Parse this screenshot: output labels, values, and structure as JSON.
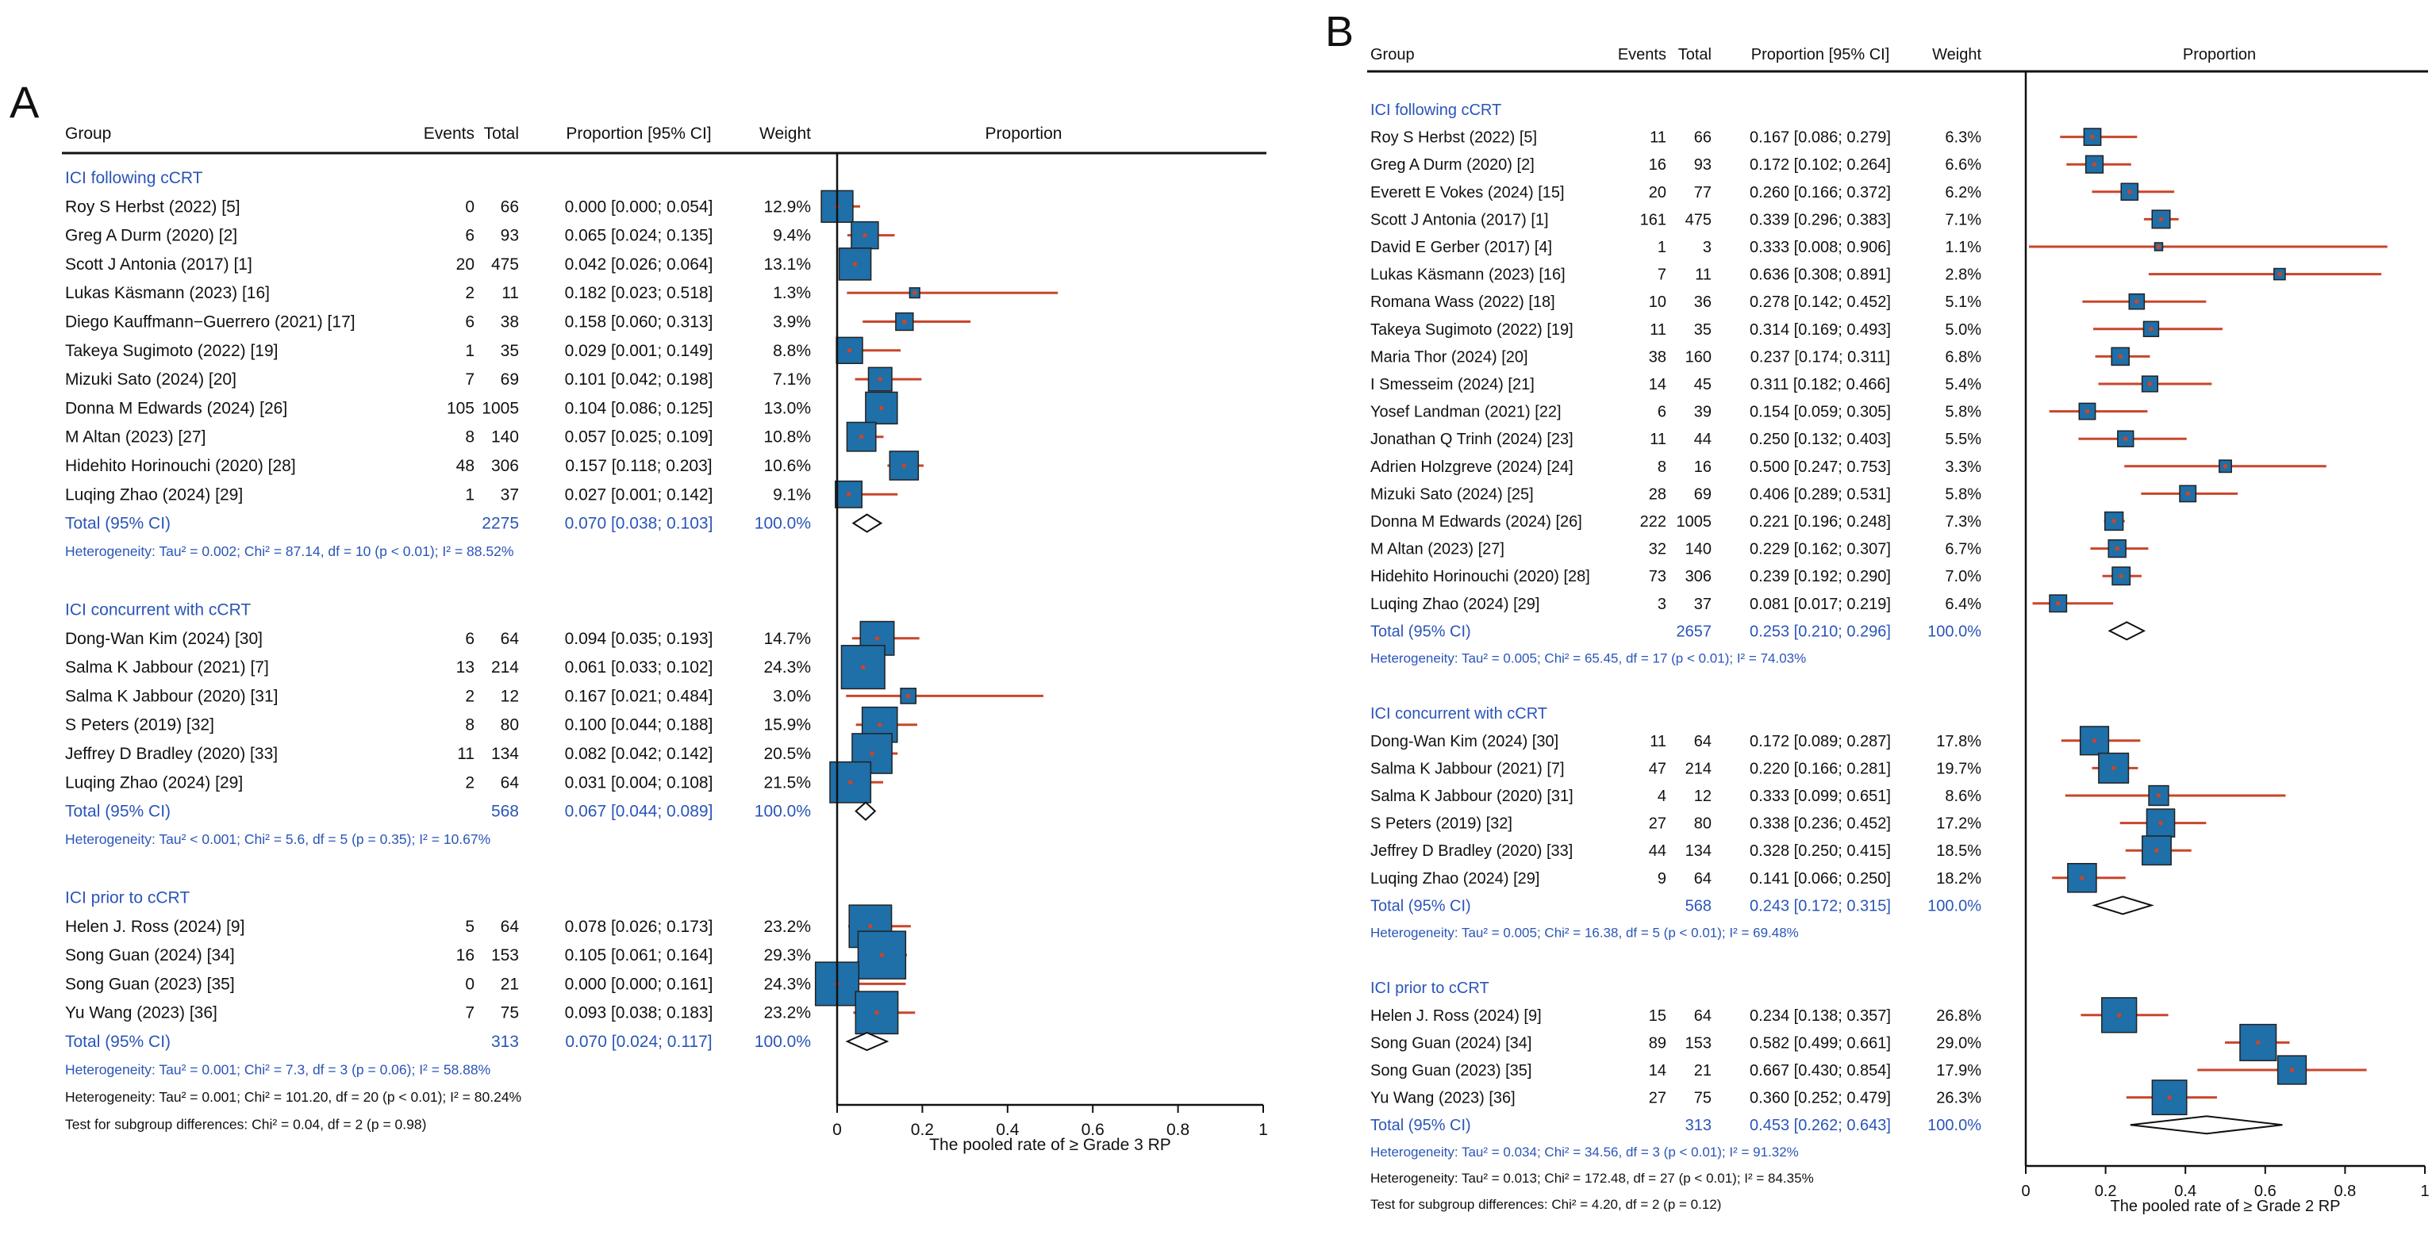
{
  "chart_data": [
    {
      "type": "forest",
      "panel_label": "A",
      "columns": {
        "group": "Group",
        "events": "Events",
        "total": "Total",
        "proportion": "Proportion [95% CI]",
        "weight": "Weight",
        "plot": "Proportion"
      },
      "xlim": [
        0,
        1
      ],
      "ticks": [
        "0",
        "0.2",
        "0.4",
        "0.6",
        "0.8",
        "1"
      ],
      "xlabel": "The pooled rate of ≥ Grade 3 RP",
      "subgroups": [
        {
          "name": "ICI following cCRT",
          "studies": [
            {
              "study": "Roy S Herbst (2022) [5]",
              "events": "0",
              "total": "66",
              "ci_text": "0.000 [0.000; 0.054]",
              "weight": "12.9%",
              "est": 0.0,
              "lo": 0.0,
              "hi": 0.054
            },
            {
              "study": "Greg A Durm (2020) [2]",
              "events": "6",
              "total": "93",
              "ci_text": "0.065 [0.024; 0.135]",
              "weight": "9.4%",
              "est": 0.065,
              "lo": 0.024,
              "hi": 0.135
            },
            {
              "study": "Scott J Antonia (2017) [1]",
              "events": "20",
              "total": "475",
              "ci_text": "0.042 [0.026; 0.064]",
              "weight": "13.1%",
              "est": 0.042,
              "lo": 0.026,
              "hi": 0.064
            },
            {
              "study": "Lukas Käsmann (2023) [16]",
              "events": "2",
              "total": "11",
              "ci_text": "0.182 [0.023; 0.518]",
              "weight": "1.3%",
              "est": 0.182,
              "lo": 0.023,
              "hi": 0.518
            },
            {
              "study": "Diego Kauffmann−Guerrero (2021) [17]",
              "events": "6",
              "total": "38",
              "ci_text": "0.158 [0.060; 0.313]",
              "weight": "3.9%",
              "est": 0.158,
              "lo": 0.06,
              "hi": 0.313
            },
            {
              "study": "Takeya Sugimoto (2022) [19]",
              "events": "1",
              "total": "35",
              "ci_text": "0.029 [0.001; 0.149]",
              "weight": "8.8%",
              "est": 0.029,
              "lo": 0.001,
              "hi": 0.149
            },
            {
              "study": "Mizuki Sato (2024) [20]",
              "events": "7",
              "total": "69",
              "ci_text": "0.101 [0.042; 0.198]",
              "weight": "7.1%",
              "est": 0.101,
              "lo": 0.042,
              "hi": 0.198
            },
            {
              "study": "Donna M Edwards (2024) [26]",
              "events": "105",
              "total": "1005",
              "ci_text": "0.104 [0.086; 0.125]",
              "weight": "13.0%",
              "est": 0.104,
              "lo": 0.086,
              "hi": 0.125
            },
            {
              "study": "M Altan (2023) [27]",
              "events": "8",
              "total": "140",
              "ci_text": "0.057 [0.025; 0.109]",
              "weight": "10.8%",
              "est": 0.057,
              "lo": 0.025,
              "hi": 0.109
            },
            {
              "study": "Hidehito Horinouchi (2020) [28]",
              "events": "48",
              "total": "306",
              "ci_text": "0.157 [0.118; 0.203]",
              "weight": "10.6%",
              "est": 0.157,
              "lo": 0.118,
              "hi": 0.203
            },
            {
              "study": "Luqing Zhao (2024) [29]",
              "events": "1",
              "total": "37",
              "ci_text": "0.027 [0.001; 0.142]",
              "weight": "9.1%",
              "est": 0.027,
              "lo": 0.001,
              "hi": 0.142
            }
          ],
          "pooled": {
            "label": "Total (95% CI)",
            "total": "2275",
            "ci_text": "0.070 [0.038; 0.103]",
            "weight": "100.0%",
            "est": 0.07,
            "lo": 0.038,
            "hi": 0.103
          },
          "heterogeneity": "Heterogeneity: Tau² = 0.002; Chi² = 87.14, df = 10 (p < 0.01); I² = 88.52%"
        },
        {
          "name": "ICI concurrent with cCRT",
          "studies": [
            {
              "study": "Dong-Wan Kim (2024) [30]",
              "events": "6",
              "total": "64",
              "ci_text": "0.094 [0.035; 0.193]",
              "weight": "14.7%",
              "est": 0.094,
              "lo": 0.035,
              "hi": 0.193
            },
            {
              "study": "Salma K Jabbour (2021) [7]",
              "events": "13",
              "total": "214",
              "ci_text": "0.061 [0.033; 0.102]",
              "weight": "24.3%",
              "est": 0.061,
              "lo": 0.033,
              "hi": 0.102
            },
            {
              "study": "Salma K Jabbour (2020) [31]",
              "events": "2",
              "total": "12",
              "ci_text": "0.167 [0.021; 0.484]",
              "weight": "3.0%",
              "est": 0.167,
              "lo": 0.021,
              "hi": 0.484
            },
            {
              "study": "S Peters (2019) [32]",
              "events": "8",
              "total": "80",
              "ci_text": "0.100 [0.044; 0.188]",
              "weight": "15.9%",
              "est": 0.1,
              "lo": 0.044,
              "hi": 0.188
            },
            {
              "study": "Jeffrey D Bradley (2020) [33]",
              "events": "11",
              "total": "134",
              "ci_text": "0.082 [0.042; 0.142]",
              "weight": "20.5%",
              "est": 0.082,
              "lo": 0.042,
              "hi": 0.142
            },
            {
              "study": "Luqing Zhao (2024) [29]",
              "events": "2",
              "total": "64",
              "ci_text": "0.031 [0.004; 0.108]",
              "weight": "21.5%",
              "est": 0.031,
              "lo": 0.004,
              "hi": 0.108
            }
          ],
          "pooled": {
            "label": "Total (95% CI)",
            "total": "568",
            "ci_text": "0.067 [0.044; 0.089]",
            "weight": "100.0%",
            "est": 0.067,
            "lo": 0.044,
            "hi": 0.089
          },
          "heterogeneity": "Heterogeneity: Tau² < 0.001; Chi² = 5.6, df = 5 (p = 0.35); I² = 10.67%"
        },
        {
          "name": "ICI prior to cCRT",
          "studies": [
            {
              "study": "Helen J. Ross (2024) [9]",
              "events": "5",
              "total": "64",
              "ci_text": "0.078 [0.026; 0.173]",
              "weight": "23.2%",
              "est": 0.078,
              "lo": 0.026,
              "hi": 0.173
            },
            {
              "study": "Song Guan (2024) [34]",
              "events": "16",
              "total": "153",
              "ci_text": "0.105 [0.061; 0.164]",
              "weight": "29.3%",
              "est": 0.105,
              "lo": 0.061,
              "hi": 0.164
            },
            {
              "study": "Song Guan (2023) [35]",
              "events": "0",
              "total": "21",
              "ci_text": "0.000 [0.000; 0.161]",
              "weight": "24.3%",
              "est": 0.0,
              "lo": 0.0,
              "hi": 0.161
            },
            {
              "study": "Yu Wang (2023) [36]",
              "events": "7",
              "total": "75",
              "ci_text": "0.093 [0.038; 0.183]",
              "weight": "23.2%",
              "est": 0.093,
              "lo": 0.038,
              "hi": 0.183
            }
          ],
          "pooled": {
            "label": "Total (95% CI)",
            "total": "313",
            "ci_text": "0.070 [0.024; 0.117]",
            "weight": "100.0%",
            "est": 0.07,
            "lo": 0.024,
            "hi": 0.117
          },
          "heterogeneity": "Heterogeneity: Tau² = 0.001; Chi² = 7.3, df = 3 (p = 0.06); I² = 58.88%"
        }
      ],
      "overall_heterogeneity": "Heterogeneity: Tau² = 0.001; Chi² = 101.20, df = 20 (p < 0.01); I² = 80.24%",
      "subgroup_test": "Test for subgroup differences: Chi² = 0.04, df = 2 (p = 0.98)"
    },
    {
      "type": "forest",
      "panel_label": "B",
      "columns": {
        "group": "Group",
        "events": "Events",
        "total": "Total",
        "proportion": "Proportion [95% CI]",
        "weight": "Weight",
        "plot": "Proportion"
      },
      "xlim": [
        0,
        1
      ],
      "ticks": [
        "0",
        "0.2",
        "0.4",
        "0.6",
        "0.8",
        "1"
      ],
      "xlabel": "The pooled rate of ≥ Grade 2 RP",
      "subgroups": [
        {
          "name": "ICI following cCRT",
          "studies": [
            {
              "study": "Roy S Herbst (2022) [5]",
              "events": "11",
              "total": "66",
              "ci_text": "0.167 [0.086; 0.279]",
              "weight": "6.3%",
              "est": 0.167,
              "lo": 0.086,
              "hi": 0.279
            },
            {
              "study": "Greg A Durm (2020) [2]",
              "events": "16",
              "total": "93",
              "ci_text": "0.172 [0.102; 0.264]",
              "weight": "6.6%",
              "est": 0.172,
              "lo": 0.102,
              "hi": 0.264
            },
            {
              "study": "Everett E Vokes (2024) [15]",
              "events": "20",
              "total": "77",
              "ci_text": "0.260 [0.166; 0.372]",
              "weight": "6.2%",
              "est": 0.26,
              "lo": 0.166,
              "hi": 0.372
            },
            {
              "study": "Scott J Antonia (2017) [1]",
              "events": "161",
              "total": "475",
              "ci_text": "0.339 [0.296; 0.383]",
              "weight": "7.1%",
              "est": 0.339,
              "lo": 0.296,
              "hi": 0.383
            },
            {
              "study": "David E Gerber (2017) [4]",
              "events": "1",
              "total": "3",
              "ci_text": "0.333 [0.008; 0.906]",
              "weight": "1.1%",
              "est": 0.333,
              "lo": 0.008,
              "hi": 0.906
            },
            {
              "study": "Lukas Käsmann (2023) [16]",
              "events": "7",
              "total": "11",
              "ci_text": "0.636 [0.308; 0.891]",
              "weight": "2.8%",
              "est": 0.636,
              "lo": 0.308,
              "hi": 0.891
            },
            {
              "study": "Romana Wass (2022) [18]",
              "events": "10",
              "total": "36",
              "ci_text": "0.278 [0.142; 0.452]",
              "weight": "5.1%",
              "est": 0.278,
              "lo": 0.142,
              "hi": 0.452
            },
            {
              "study": "Takeya Sugimoto (2022) [19]",
              "events": "11",
              "total": "35",
              "ci_text": "0.314 [0.169; 0.493]",
              "weight": "5.0%",
              "est": 0.314,
              "lo": 0.169,
              "hi": 0.493
            },
            {
              "study": "Maria Thor (2024) [20]",
              "events": "38",
              "total": "160",
              "ci_text": "0.237 [0.174; 0.311]",
              "weight": "6.8%",
              "est": 0.237,
              "lo": 0.174,
              "hi": 0.311
            },
            {
              "study": "I Smesseim (2024) [21]",
              "events": "14",
              "total": "45",
              "ci_text": "0.311 [0.182; 0.466]",
              "weight": "5.4%",
              "est": 0.311,
              "lo": 0.182,
              "hi": 0.466
            },
            {
              "study": "Yosef Landman (2021) [22]",
              "events": "6",
              "total": "39",
              "ci_text": "0.154 [0.059; 0.305]",
              "weight": "5.8%",
              "est": 0.154,
              "lo": 0.059,
              "hi": 0.305
            },
            {
              "study": "Jonathan Q Trinh (2024) [23]",
              "events": "11",
              "total": "44",
              "ci_text": "0.250 [0.132; 0.403]",
              "weight": "5.5%",
              "est": 0.25,
              "lo": 0.132,
              "hi": 0.403
            },
            {
              "study": "Adrien Holzgreve (2024) [24]",
              "events": "8",
              "total": "16",
              "ci_text": "0.500 [0.247; 0.753]",
              "weight": "3.3%",
              "est": 0.5,
              "lo": 0.247,
              "hi": 0.753
            },
            {
              "study": "Mizuki Sato (2024) [25]",
              "events": "28",
              "total": "69",
              "ci_text": "0.406 [0.289; 0.531]",
              "weight": "5.8%",
              "est": 0.406,
              "lo": 0.289,
              "hi": 0.531
            },
            {
              "study": "Donna M Edwards (2024) [26]",
              "events": "222",
              "total": "1005",
              "ci_text": "0.221 [0.196; 0.248]",
              "weight": "7.3%",
              "est": 0.221,
              "lo": 0.196,
              "hi": 0.248
            },
            {
              "study": "M Altan (2023) [27]",
              "events": "32",
              "total": "140",
              "ci_text": "0.229 [0.162; 0.307]",
              "weight": "6.7%",
              "est": 0.229,
              "lo": 0.162,
              "hi": 0.307
            },
            {
              "study": "Hidehito Horinouchi (2020) [28]",
              "events": "73",
              "total": "306",
              "ci_text": "0.239 [0.192; 0.290]",
              "weight": "7.0%",
              "est": 0.239,
              "lo": 0.192,
              "hi": 0.29
            },
            {
              "study": "Luqing Zhao (2024) [29]",
              "events": "3",
              "total": "37",
              "ci_text": "0.081 [0.017; 0.219]",
              "weight": "6.4%",
              "est": 0.081,
              "lo": 0.017,
              "hi": 0.219
            }
          ],
          "pooled": {
            "label": "Total (95% CI)",
            "total": "2657",
            "ci_text": "0.253 [0.210; 0.296]",
            "weight": "100.0%",
            "est": 0.253,
            "lo": 0.21,
            "hi": 0.296
          },
          "heterogeneity": "Heterogeneity: Tau² = 0.005; Chi² = 65.45, df = 17 (p < 0.01); I² = 74.03%"
        },
        {
          "name": "ICI concurrent with cCRT",
          "studies": [
            {
              "study": "Dong-Wan Kim (2024) [30]",
              "events": "11",
              "total": "64",
              "ci_text": "0.172 [0.089; 0.287]",
              "weight": "17.8%",
              "est": 0.172,
              "lo": 0.089,
              "hi": 0.287
            },
            {
              "study": "Salma K Jabbour (2021) [7]",
              "events": "47",
              "total": "214",
              "ci_text": "0.220 [0.166; 0.281]",
              "weight": "19.7%",
              "est": 0.22,
              "lo": 0.166,
              "hi": 0.281
            },
            {
              "study": "Salma K Jabbour (2020) [31]",
              "events": "4",
              "total": "12",
              "ci_text": "0.333 [0.099; 0.651]",
              "weight": "8.6%",
              "est": 0.333,
              "lo": 0.099,
              "hi": 0.651
            },
            {
              "study": "S Peters (2019) [32]",
              "events": "27",
              "total": "80",
              "ci_text": "0.338 [0.236; 0.452]",
              "weight": "17.2%",
              "est": 0.338,
              "lo": 0.236,
              "hi": 0.452
            },
            {
              "study": "Jeffrey D Bradley (2020) [33]",
              "events": "44",
              "total": "134",
              "ci_text": "0.328 [0.250; 0.415]",
              "weight": "18.5%",
              "est": 0.328,
              "lo": 0.25,
              "hi": 0.415
            },
            {
              "study": "Luqing Zhao (2024) [29]",
              "events": "9",
              "total": "64",
              "ci_text": "0.141 [0.066; 0.250]",
              "weight": "18.2%",
              "est": 0.141,
              "lo": 0.066,
              "hi": 0.25
            }
          ],
          "pooled": {
            "label": "Total (95% CI)",
            "total": "568",
            "ci_text": "0.243 [0.172; 0.315]",
            "weight": "100.0%",
            "est": 0.243,
            "lo": 0.172,
            "hi": 0.315
          },
          "heterogeneity": "Heterogeneity: Tau² = 0.005; Chi² = 16.38, df = 5 (p < 0.01); I² = 69.48%"
        },
        {
          "name": "ICI  prior to cCRT",
          "studies": [
            {
              "study": "Helen J. Ross (2024) [9]",
              "events": "15",
              "total": "64",
              "ci_text": "0.234 [0.138; 0.357]",
              "weight": "26.8%",
              "est": 0.234,
              "lo": 0.138,
              "hi": 0.357
            },
            {
              "study": "Song Guan (2024) [34]",
              "events": "89",
              "total": "153",
              "ci_text": "0.582 [0.499; 0.661]",
              "weight": "29.0%",
              "est": 0.582,
              "lo": 0.499,
              "hi": 0.661
            },
            {
              "study": "Song Guan (2023) [35]",
              "events": "14",
              "total": "21",
              "ci_text": "0.667 [0.430; 0.854]",
              "weight": "17.9%",
              "est": 0.667,
              "lo": 0.43,
              "hi": 0.854
            },
            {
              "study": "Yu Wang (2023) [36]",
              "events": "27",
              "total": "75",
              "ci_text": "0.360 [0.252; 0.479]",
              "weight": "26.3%",
              "est": 0.36,
              "lo": 0.252,
              "hi": 0.479
            }
          ],
          "pooled": {
            "label": "Total (95% CI)",
            "total": "313",
            "ci_text": "0.453 [0.262; 0.643]",
            "weight": "100.0%",
            "est": 0.453,
            "lo": 0.262,
            "hi": 0.643
          },
          "heterogeneity": "Heterogeneity: Tau² = 0.034; Chi² = 34.56, df = 3 (p < 0.01); I² = 91.32%"
        }
      ],
      "overall_heterogeneity": "Heterogeneity: Tau² = 0.013; Chi² = 172.48, df = 27 (p < 0.01); I² = 84.35%",
      "subgroup_test": "Test for subgroup differences: Chi² = 4.20, df = 2 (p = 0.12)"
    }
  ],
  "colors": {
    "text": "#111111",
    "blue_text": "#2a55b8",
    "ci_line": "#c8462b",
    "box_fill": "#1f6fa8",
    "box_stroke": "#222222",
    "center_dot": "#c8462b"
  }
}
